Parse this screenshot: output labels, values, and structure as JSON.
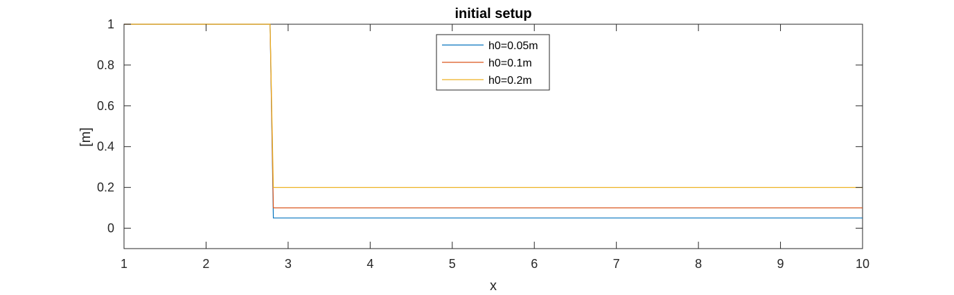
{
  "chart_data": {
    "type": "line",
    "title": "initial setup",
    "xlabel": "x",
    "ylabel": "[m]",
    "xlim": [
      1,
      10
    ],
    "ylim": [
      -0.1,
      1
    ],
    "xticks": [
      1,
      2,
      3,
      4,
      5,
      6,
      7,
      8,
      9,
      10
    ],
    "yticks": [
      0,
      0.2,
      0.4,
      0.6,
      0.8,
      1
    ],
    "ytick_labels": [
      "0",
      "0.2",
      "0.4",
      "0.6",
      "0.8",
      "1"
    ],
    "grid": false,
    "legend_position": "top-center",
    "series": [
      {
        "name": "h0=0.05m",
        "color": "#0072BD",
        "x": [
          1,
          2.78,
          2.82,
          10
        ],
        "y": [
          1,
          1,
          0.05,
          0.05
        ]
      },
      {
        "name": "h0=0.1m",
        "color": "#D95319",
        "x": [
          1,
          2.78,
          2.82,
          10
        ],
        "y": [
          1,
          1,
          0.1,
          0.1
        ]
      },
      {
        "name": "h0=0.2m",
        "color": "#EDB120",
        "x": [
          1,
          2.78,
          2.82,
          10
        ],
        "y": [
          1,
          1,
          0.2,
          0.2
        ]
      }
    ]
  }
}
